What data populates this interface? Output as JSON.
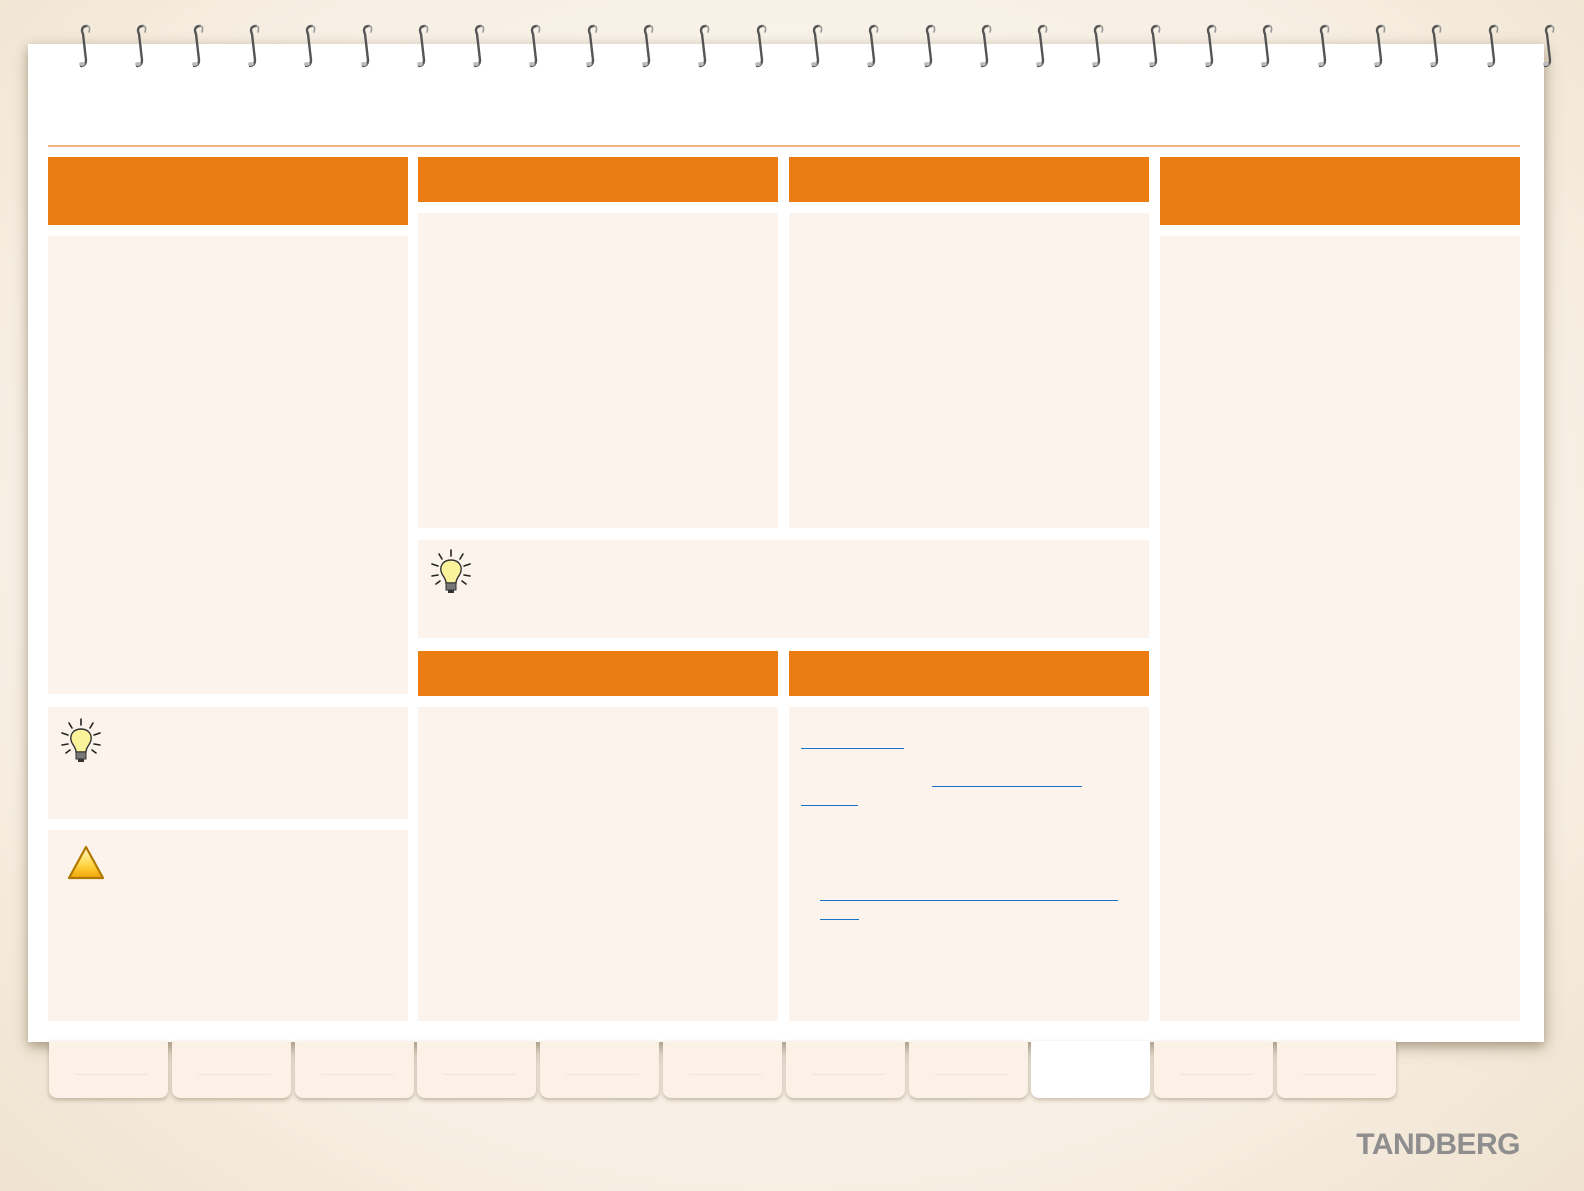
{
  "brand": {
    "logo_text": "TANDBERG"
  },
  "colors": {
    "accent": "#ec7d13",
    "panel": "#fcf4ec",
    "link": "#1a73c9",
    "rule": "#efb583"
  },
  "icons": {
    "tip": "lightbulb-icon",
    "warning": "warning-triangle-icon"
  },
  "tabs": {
    "count": 11,
    "active_index": 8
  }
}
